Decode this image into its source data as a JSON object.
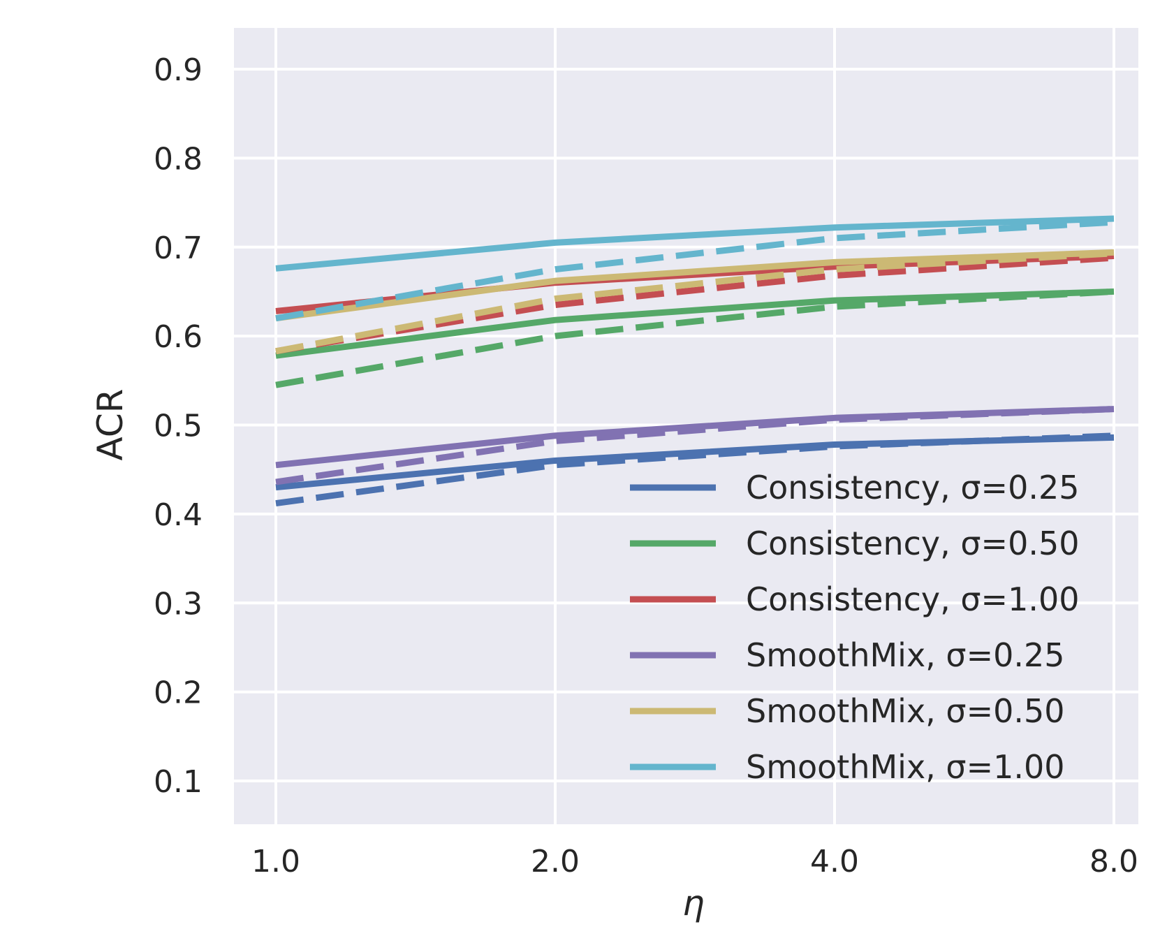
{
  "chart_data": {
    "type": "line",
    "x_tick_labels": [
      "1.0",
      "2.0",
      "4.0",
      "8.0"
    ],
    "x": [
      1,
      2,
      4,
      8
    ],
    "xscale": "log2",
    "xlabel": "η",
    "ylabel": "ACR",
    "ylim": [
      0.05,
      0.95
    ],
    "y_ticks": [
      0.1,
      0.2,
      0.3,
      0.4,
      0.5,
      0.6,
      0.7,
      0.8,
      0.9
    ],
    "y_tick_labels": [
      "0.1",
      "0.2",
      "0.3",
      "0.4",
      "0.5",
      "0.6",
      "0.7",
      "0.8",
      "0.9"
    ],
    "grid": true,
    "background": "#eaeaf2",
    "legend_position": "lower-right",
    "series": [
      {
        "name": "Consistency, σ=0.25",
        "color": "#4c72b0",
        "solid": [
          0.43,
          0.46,
          0.478,
          0.486
        ],
        "dashed": [
          0.412,
          0.455,
          0.476,
          0.488
        ]
      },
      {
        "name": "Consistency, σ=0.50",
        "color": "#55a868",
        "solid": [
          0.578,
          0.618,
          0.64,
          0.65
        ],
        "dashed": [
          0.545,
          0.6,
          0.633,
          0.65
        ]
      },
      {
        "name": "Consistency, σ=1.00",
        "color": "#c44e52",
        "solid": [
          0.628,
          0.66,
          0.678,
          0.69
        ],
        "dashed": [
          0.583,
          0.635,
          0.668,
          0.688
        ]
      },
      {
        "name": "SmoothMix, σ=0.25",
        "color": "#8172b2",
        "solid": [
          0.455,
          0.488,
          0.508,
          0.518
        ],
        "dashed": [
          0.436,
          0.482,
          0.506,
          0.518
        ]
      },
      {
        "name": "SmoothMix, σ=0.50",
        "color": "#ccb974",
        "solid": [
          0.62,
          0.662,
          0.683,
          0.694
        ],
        "dashed": [
          0.583,
          0.642,
          0.675,
          0.693
        ]
      },
      {
        "name": "SmoothMix, σ=1.00",
        "color": "#64b5cd",
        "solid": [
          0.676,
          0.705,
          0.722,
          0.732
        ],
        "dashed": [
          0.62,
          0.675,
          0.71,
          0.728
        ]
      }
    ]
  }
}
